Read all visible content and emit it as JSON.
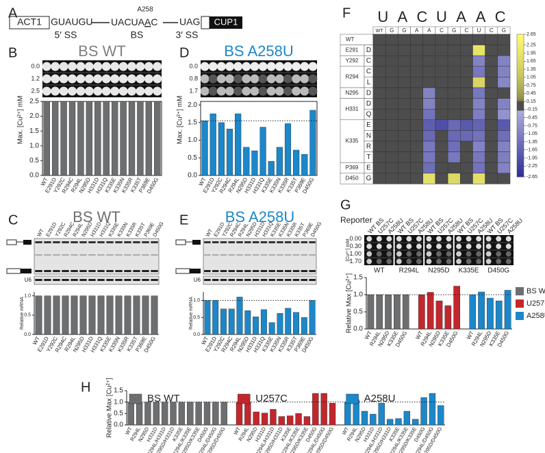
{
  "panel_labels": [
    "A",
    "B",
    "C",
    "D",
    "E",
    "F",
    "G",
    "H"
  ],
  "diagram": {
    "left_exon": "ACT1",
    "ss5": "GUAUGU",
    "bs_pre": "UACUA",
    "bs_a": "A",
    "bs_post": "C",
    "a258": "A258",
    "ss3": "UAG",
    "right_exon": "CUP1",
    "ss5_label": "5′ SS",
    "bs_label": "BS",
    "ss3_label": "3′ SS"
  },
  "plates": {
    "b": {
      "rows": [
        "0.0",
        "1.2",
        "2.5"
      ]
    },
    "d": {
      "rows": [
        "0.0",
        "0.8",
        "1.7"
      ]
    },
    "g": {
      "reporter": "Reporter",
      "axis_label": "[Cu²⁺] mM",
      "rows": [
        "0.00",
        "0.30",
        "1.00",
        "1.70"
      ],
      "columns": [
        "WT BS",
        "U257C",
        "A258U"
      ],
      "strains": [
        "WT",
        "R294L",
        "N295D",
        "K335E",
        "D450G"
      ]
    }
  },
  "gels": {
    "c": {
      "title": "BS WT",
      "loading": "U6"
    },
    "e": {
      "title": "BS A258U",
      "loading": "U6"
    }
  },
  "chart_data": [
    {
      "type": "bar",
      "title": "BS WT",
      "title_color": "#808080",
      "y_label": "Max. [Cu²⁺] mM",
      "categories": [
        "WT",
        "E291D",
        "Y292C",
        "R294C",
        "R294L",
        "N295D",
        "H331D",
        "H331Q",
        "K335E",
        "K335N",
        "K335R",
        "K335T",
        "P369E",
        "D450G"
      ],
      "values": [
        2.5,
        2.5,
        2.5,
        2.5,
        2.5,
        2.5,
        2.5,
        2.5,
        2.5,
        2.5,
        2.5,
        2.5,
        2.5,
        2.5
      ],
      "color": "#6d6e70",
      "ylim": [
        0,
        2.5
      ],
      "yticks": [
        {
          "value": 0,
          "label": "0.0"
        },
        0.5,
        {
          "value": 1,
          "label": "1.0"
        },
        1.5,
        {
          "value": 2,
          "label": "2.0"
        },
        2.5
      ]
    },
    {
      "type": "bar",
      "title": "BS A258U",
      "title_color": "#1c87c9",
      "y_label": "Max. [Cu²⁺] mM",
      "categories": [
        "WT",
        "E291D",
        "Y292C",
        "R294C",
        "R294L",
        "N295D",
        "H331D",
        "H331Q",
        "K335E",
        "K335N",
        "K335R",
        "K335T",
        "P369E",
        "D450G"
      ],
      "values": [
        1.55,
        1.75,
        1.5,
        1.32,
        1.75,
        0.8,
        0.7,
        1.37,
        0.4,
        0.8,
        1.47,
        0.72,
        0.6,
        1.85
      ],
      "color": "#1c87c9",
      "ylim": [
        0,
        2.1
      ],
      "yticks": [
        {
          "value": 0,
          "label": "0.0"
        },
        0.5,
        {
          "value": 1,
          "label": "1.0"
        },
        1.5,
        {
          "value": 2,
          "label": "2.0"
        }
      ],
      "refline": 1.55
    },
    {
      "type": "bar",
      "y_label": "Relative mRNA",
      "categories": [
        "WT",
        "E291D",
        "Y292C",
        "R294C",
        "R294L",
        "N295D",
        "H331D",
        "H331Q",
        "K335E",
        "K335N",
        "K335R",
        "K335T",
        "P369E",
        "D450G"
      ],
      "values": [
        1,
        1,
        1,
        1,
        1,
        1,
        1,
        1,
        1,
        1,
        1,
        1,
        1,
        1
      ],
      "color": "#6d6e70",
      "ylim": [
        0,
        1.1
      ],
      "yticks": [
        {
          "value": 0,
          "label": "0.0"
        },
        0.5,
        {
          "value": 1,
          "label": "1.0"
        }
      ]
    },
    {
      "type": "bar",
      "y_label": "Relative mRNA",
      "categories": [
        "WT",
        "E291D",
        "Y292C",
        "R294C",
        "R294L",
        "N295D",
        "H331D",
        "H331Q",
        "K335E",
        "K335N",
        "K335R",
        "K335T",
        "P369E",
        "D450G"
      ],
      "values": [
        1,
        1,
        0.75,
        0.75,
        1.1,
        0.7,
        0.52,
        0.73,
        0.35,
        0.62,
        0.77,
        0.65,
        0.5,
        1
      ],
      "color": "#1c87c9",
      "ylim": [
        0,
        1.25
      ],
      "yticks": [
        {
          "value": 0,
          "label": "0.0"
        },
        0.5,
        {
          "value": 1,
          "label": "1.0"
        }
      ],
      "refline": 1
    },
    {
      "type": "bar",
      "y_label": "Relative Max [Cu²⁺]",
      "categories": [
        "WT",
        "R294L",
        "N295D",
        "K335E",
        "D450G"
      ],
      "series": [
        {
          "name": "BS WT",
          "color": "#6d6e70",
          "values": [
            1,
            1,
            1,
            1,
            1
          ]
        },
        {
          "name": "U257C",
          "color": "#c1272d",
          "values": [
            1,
            1.07,
            0.82,
            0.68,
            1.25
          ]
        },
        {
          "name": "A258U",
          "color": "#1c87c9",
          "values": [
            1,
            1.08,
            0.9,
            0.82,
            1.13
          ]
        }
      ],
      "ylim": [
        0,
        1.5
      ],
      "yticks": [
        {
          "value": 0,
          "label": "0.0"
        },
        0.5,
        {
          "value": 1,
          "label": "1.0"
        },
        1.5
      ],
      "refline": 1,
      "legend": "right"
    },
    {
      "type": "bar",
      "y_label": "Relative Max [Cu²⁺]",
      "categories": [
        "WT",
        "R294L",
        "N295D",
        "H331D",
        "R294L/H331D",
        "N295D/H331D",
        "K335E",
        "R294L/K335E",
        "N295D/K335E",
        "D450G",
        "R294L/D450G",
        "N295D/D450G"
      ],
      "series": [
        {
          "name": "BS WT",
          "color": "#6d6e70",
          "values": [
            1,
            1,
            1,
            1,
            1,
            1,
            1,
            1,
            1,
            1,
            1,
            1
          ]
        },
        {
          "name": "U257C",
          "color": "#c1272d",
          "values": [
            1,
            1,
            0.57,
            0.52,
            0.68,
            0.37,
            0.4,
            0.5,
            0.37,
            1.38,
            1.38,
            0.95
          ]
        },
        {
          "name": "A258U",
          "color": "#1c87c9",
          "values": [
            1,
            1.1,
            0.6,
            0.47,
            0.95,
            0.25,
            0.28,
            0.6,
            0.25,
            1.2,
            1.38,
            0.85
          ]
        }
      ],
      "ylim": [
        0,
        1.5
      ],
      "yticks": [
        {
          "value": 0,
          "label": "0.0"
        },
        0.5,
        {
          "value": 1,
          "label": "1.0"
        },
        1.5
      ],
      "refline": 1,
      "legend": "top"
    },
    {
      "type": "heatmap",
      "top_letters": [
        "U",
        "A",
        "C",
        "U",
        "A",
        "A",
        "C"
      ],
      "columns": [
        "WT",
        "G",
        "G",
        "A",
        "A",
        "C",
        "G",
        "C",
        "U",
        "C",
        "G"
      ],
      "row_groups": [
        {
          "name": "WT"
        },
        {
          "name": "E291",
          "rows": [
            "D"
          ]
        },
        {
          "name": "Y292",
          "rows": [
            "C"
          ]
        },
        {
          "name": "R294",
          "rows": [
            "C",
            "L"
          ]
        },
        {
          "name": "N295",
          "rows": [
            "D"
          ]
        },
        {
          "name": "H331",
          "rows": [
            "D",
            "Q"
          ]
        },
        {
          "name": "K335",
          "rows": [
            "E",
            "N",
            "R",
            "T"
          ]
        },
        {
          "name": "P369",
          "rows": [
            "E"
          ]
        },
        {
          "name": "D450",
          "rows": [
            "G"
          ]
        }
      ],
      "values": [
        [
          0,
          0,
          0,
          0,
          0,
          0,
          0,
          0,
          0,
          0,
          0
        ],
        [
          0,
          0,
          0,
          0,
          0,
          0,
          0,
          0,
          1.9,
          0,
          0
        ],
        [
          0,
          0,
          0,
          0,
          0,
          0,
          0,
          0,
          -1.0,
          0,
          -1.0
        ],
        [
          0,
          0,
          0,
          0,
          0,
          0,
          0,
          0,
          -1.2,
          0,
          -1.0
        ],
        [
          0,
          0,
          0,
          0,
          0,
          0,
          0,
          0,
          1.5,
          0,
          -0.9
        ],
        [
          0,
          0,
          0,
          0,
          -1.0,
          0,
          0,
          0,
          -1.2,
          0,
          0
        ],
        [
          0,
          0,
          0,
          0,
          -1.0,
          0,
          0,
          0,
          -1.0,
          0,
          -1.0
        ],
        [
          0,
          0,
          0,
          0,
          -1.3,
          0,
          0,
          0,
          -1.1,
          0,
          -0.7
        ],
        [
          0,
          0,
          0,
          0,
          -1.7,
          -2.0,
          -1.5,
          -1.8,
          -1.6,
          0,
          -1.8
        ],
        [
          0,
          0,
          0,
          0,
          -1.5,
          0,
          -1.5,
          -1.5,
          -1.3,
          0,
          -1.4
        ],
        [
          0,
          0,
          0,
          0,
          -1.2,
          0,
          -1.4,
          0,
          -1.0,
          0,
          -1.0
        ],
        [
          0,
          0,
          0,
          0,
          -1.2,
          0,
          -1.2,
          0,
          -1.2,
          0,
          -1.1
        ],
        [
          0,
          0,
          0,
          0,
          -1.4,
          0,
          0,
          0,
          -1.3,
          0,
          -1.0
        ],
        [
          0,
          0,
          0,
          0,
          1.8,
          0,
          1.6,
          0,
          1.8,
          0,
          0
        ]
      ],
      "clim": [
        -2.65,
        2.65
      ],
      "cticks": [
        2.65,
        2.25,
        1.95,
        1.65,
        1.35,
        1.05,
        0.75,
        0.45,
        0.15,
        -0.15,
        -0.45,
        -0.75,
        -1.05,
        -1.35,
        -1.65,
        -1.95,
        -2.25,
        -2.65
      ]
    }
  ]
}
